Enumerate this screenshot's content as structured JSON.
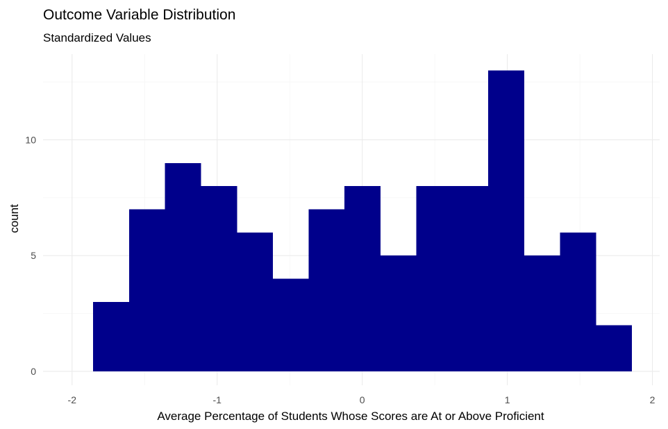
{
  "chart_data": {
    "type": "bar",
    "title": "Outcome Variable Distribution",
    "subtitle": "Standardized Values",
    "xlabel": "Average Percentage of Students Whose Scores are At or Above Proficient",
    "ylabel": "count",
    "xlim": [
      -2.2,
      2.05
    ],
    "ylim": [
      -0.6,
      13.7
    ],
    "x_ticks": [
      -2,
      -1,
      0,
      1,
      2
    ],
    "x_tick_labels": [
      "-2",
      "-1",
      "0",
      "1",
      "2"
    ],
    "y_ticks": [
      0,
      5,
      10
    ],
    "y_tick_labels": [
      "0",
      "5",
      "10"
    ],
    "grid": true,
    "bin_width": 0.2475,
    "bin_edges": [
      -1.855,
      -1.6075,
      -1.36,
      -1.1125,
      -0.865,
      -0.6175,
      -0.37,
      -0.1225,
      0.125,
      0.3725,
      0.62,
      0.8675,
      1.115,
      1.3625,
      1.61,
      1.8575
    ],
    "values": [
      3,
      7,
      9,
      8,
      6,
      4,
      7,
      8,
      5,
      8,
      8,
      13,
      5,
      6,
      2
    ],
    "bar_color": "#00008B"
  }
}
